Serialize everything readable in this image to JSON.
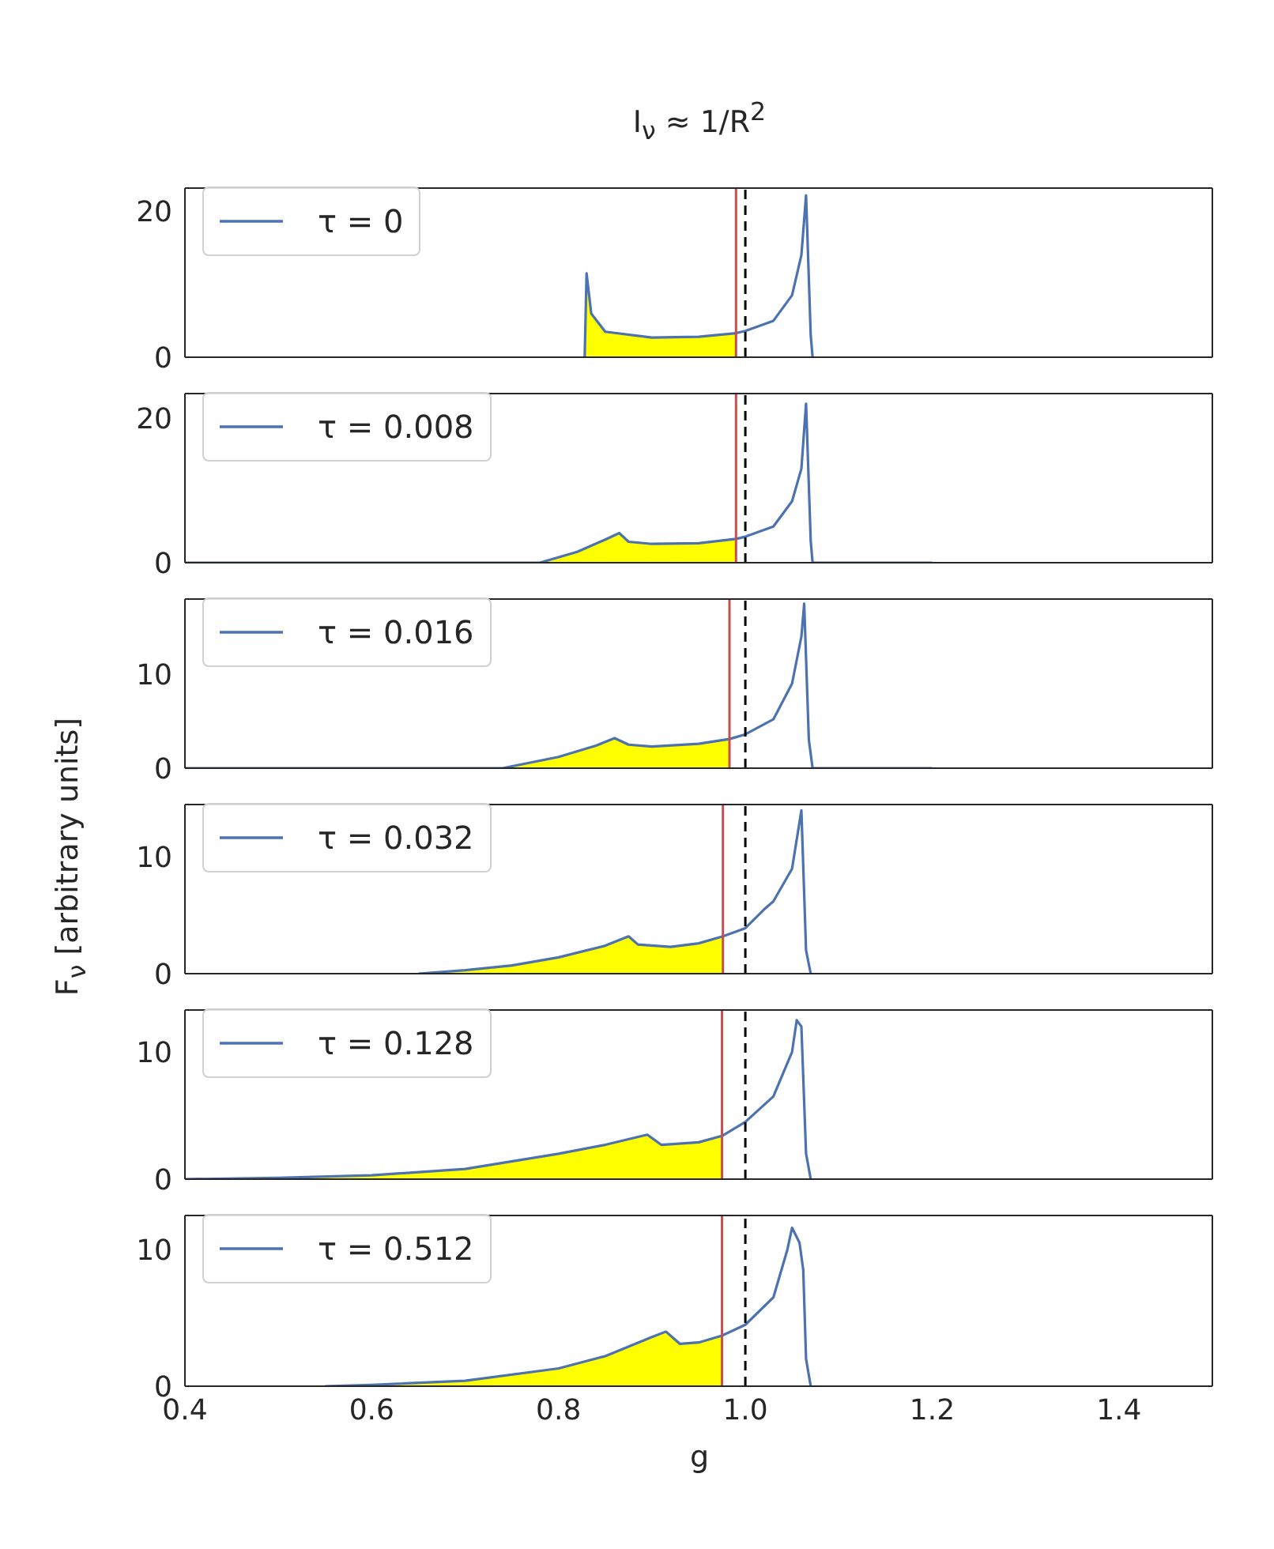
{
  "chart_data": [
    {
      "type": "line",
      "title": "I$_{ν}$ ≈ 1/R$^{2}$",
      "xlim": [
        0.4,
        1.5
      ],
      "xticks": [
        0.4,
        0.6,
        0.8,
        1.0,
        1.2,
        1.4
      ],
      "ylim": [
        0,
        23.2
      ],
      "yticks": [
        0,
        20
      ],
      "tick_labels": "y",
      "legend": "top left",
      "ref_lines": [
        {
          "axis": "x",
          "value": 0.99,
          "color": "#c44e52"
        },
        {
          "axis": "x",
          "value": 1.0,
          "color": "#000000",
          "line_style": "dashed"
        }
      ],
      "series": [
        {
          "type": "area",
          "color": "#ffff00",
          "x": [
            0.828,
            0.83,
            0.835,
            0.85,
            0.9,
            0.95,
            0.99
          ],
          "values": [
            0,
            11.5,
            6,
            3.5,
            2.7,
            2.8,
            3.3
          ]
        },
        {
          "type": "line",
          "name": "τ = 0",
          "color": "#4c72b0",
          "x": [
            0.828,
            0.83,
            0.835,
            0.85,
            0.9,
            0.95,
            0.99,
            1.0,
            1.03,
            1.05,
            1.06,
            1.065,
            1.07,
            1.072
          ],
          "values": [
            0,
            11.5,
            6,
            3.5,
            2.7,
            2.8,
            3.3,
            3.6,
            5,
            8.5,
            14,
            22.2,
            3,
            0
          ]
        }
      ]
    },
    {
      "type": "line",
      "xlim": [
        0.4,
        1.5
      ],
      "xticks": [
        0.4,
        0.6,
        0.8,
        1.0,
        1.2,
        1.4
      ],
      "ylim": [
        0,
        23.4
      ],
      "yticks": [
        0,
        20
      ],
      "tick_labels": "y",
      "legend": "top left",
      "ref_lines": [
        {
          "axis": "x",
          "value": 0.99,
          "color": "#c44e52"
        },
        {
          "axis": "x",
          "value": 1.0,
          "color": "#000000",
          "line_style": "dashed"
        }
      ],
      "series": [
        {
          "type": "area",
          "color": "#ffff00",
          "x": [
            0.4,
            0.78,
            0.82,
            0.85,
            0.865,
            0.875,
            0.9,
            0.95,
            0.99
          ],
          "values": [
            0,
            0,
            1.5,
            3.2,
            4.1,
            2.9,
            2.6,
            2.7,
            3.3
          ]
        },
        {
          "type": "line",
          "name": "τ = 0.008",
          "color": "#4c72b0",
          "x": [
            0.4,
            0.78,
            0.82,
            0.85,
            0.865,
            0.875,
            0.9,
            0.95,
            0.99,
            1.0,
            1.03,
            1.05,
            1.06,
            1.065,
            1.07,
            1.072,
            1.2
          ],
          "values": [
            0,
            0,
            1.5,
            3.2,
            4.1,
            2.9,
            2.6,
            2.7,
            3.3,
            3.6,
            5,
            8.5,
            13,
            22,
            3,
            0,
            0
          ]
        }
      ]
    },
    {
      "type": "line",
      "xlim": [
        0.4,
        1.5
      ],
      "xticks": [
        0.4,
        0.6,
        0.8,
        1.0,
        1.2,
        1.4
      ],
      "ylim": [
        0,
        18
      ],
      "yticks": [
        0,
        10
      ],
      "tick_labels": "y",
      "legend": "top left",
      "ref_lines": [
        {
          "axis": "x",
          "value": 0.983,
          "color": "#c44e52"
        },
        {
          "axis": "x",
          "value": 1.0,
          "color": "#000000",
          "line_style": "dashed"
        }
      ],
      "series": [
        {
          "type": "area",
          "color": "#ffff00",
          "x": [
            0.4,
            0.74,
            0.8,
            0.84,
            0.86,
            0.875,
            0.9,
            0.95,
            0.983
          ],
          "values": [
            0,
            0,
            1.2,
            2.4,
            3.2,
            2.5,
            2.3,
            2.6,
            3.1
          ]
        },
        {
          "type": "line",
          "name": "τ = 0.016",
          "color": "#4c72b0",
          "x": [
            0.4,
            0.74,
            0.8,
            0.84,
            0.86,
            0.875,
            0.9,
            0.95,
            0.983,
            1.0,
            1.03,
            1.05,
            1.06,
            1.063,
            1.068,
            1.072,
            1.2
          ],
          "values": [
            0,
            0,
            1.2,
            2.4,
            3.2,
            2.5,
            2.3,
            2.6,
            3.1,
            3.6,
            5.2,
            9,
            14,
            17.5,
            3,
            0,
            0
          ]
        }
      ]
    },
    {
      "type": "line",
      "ylabel": "F$_{ν}$ [arbitrary units]",
      "xlim": [
        0.4,
        1.5
      ],
      "xticks": [
        0.4,
        0.6,
        0.8,
        1.0,
        1.2,
        1.4
      ],
      "ylim": [
        0,
        14.5
      ],
      "yticks": [
        0,
        10
      ],
      "tick_labels": "y",
      "legend": "top left",
      "ref_lines": [
        {
          "axis": "x",
          "value": 0.976,
          "color": "#c44e52"
        },
        {
          "axis": "x",
          "value": 1.0,
          "color": "#000000",
          "line_style": "dashed"
        }
      ],
      "series": [
        {
          "type": "area",
          "color": "#ffff00",
          "x": [
            0.65,
            0.7,
            0.75,
            0.8,
            0.85,
            0.875,
            0.885,
            0.92,
            0.95,
            0.976
          ],
          "values": [
            0,
            0.3,
            0.7,
            1.4,
            2.4,
            3.2,
            2.5,
            2.3,
            2.6,
            3.2
          ]
        },
        {
          "type": "line",
          "name": "τ = 0.032",
          "color": "#4c72b0",
          "x": [
            0.65,
            0.7,
            0.75,
            0.8,
            0.85,
            0.875,
            0.885,
            0.92,
            0.95,
            0.976,
            1.0,
            1.02,
            1.03,
            1.05,
            1.06,
            1.065,
            1.07
          ],
          "values": [
            0,
            0.3,
            0.7,
            1.4,
            2.4,
            3.2,
            2.5,
            2.3,
            2.6,
            3.2,
            3.9,
            5.5,
            6.2,
            9,
            14,
            2,
            0
          ]
        }
      ]
    },
    {
      "type": "line",
      "xlim": [
        0.4,
        1.5
      ],
      "xticks": [
        0.4,
        0.6,
        0.8,
        1.0,
        1.2,
        1.4
      ],
      "ylim": [
        0,
        13.3
      ],
      "yticks": [
        0,
        10
      ],
      "tick_labels": "y",
      "legend": "top left",
      "ref_lines": [
        {
          "axis": "x",
          "value": 0.975,
          "color": "#c44e52"
        },
        {
          "axis": "x",
          "value": 1.0,
          "color": "#000000",
          "line_style": "dashed"
        }
      ],
      "series": [
        {
          "type": "area",
          "color": "#ffff00",
          "x": [
            0.4,
            0.5,
            0.6,
            0.7,
            0.8,
            0.85,
            0.895,
            0.91,
            0.95,
            0.975
          ],
          "values": [
            0,
            0.1,
            0.3,
            0.8,
            2,
            2.7,
            3.5,
            2.7,
            2.9,
            3.4
          ]
        },
        {
          "type": "line",
          "name": "τ = 0.128",
          "color": "#4c72b0",
          "x": [
            0.4,
            0.5,
            0.6,
            0.7,
            0.8,
            0.85,
            0.895,
            0.91,
            0.95,
            0.975,
            1.0,
            1.03,
            1.05,
            1.055,
            1.06,
            1.065,
            1.07
          ],
          "values": [
            0,
            0.1,
            0.3,
            0.8,
            2,
            2.7,
            3.5,
            2.7,
            2.9,
            3.4,
            4.5,
            6.5,
            10,
            12.5,
            12,
            2,
            0
          ]
        }
      ]
    },
    {
      "type": "line",
      "xlabel": "g",
      "xlim": [
        0.4,
        1.5
      ],
      "xticks": [
        0.4,
        0.6,
        0.8,
        {
          "value": 1.0,
          "label": "1.0"
        },
        1.2,
        1.4
      ],
      "ylim": [
        0,
        12.5
      ],
      "yticks": [
        0,
        10
      ],
      "legend": "top left",
      "ref_lines": [
        {
          "axis": "x",
          "value": 0.975,
          "color": "#c44e52"
        },
        {
          "axis": "x",
          "value": 1.0,
          "color": "#000000",
          "line_style": "dashed"
        }
      ],
      "series": [
        {
          "type": "area",
          "color": "#ffff00",
          "x": [
            0.55,
            0.6,
            0.7,
            0.8,
            0.85,
            0.9,
            0.915,
            0.93,
            0.95,
            0.975
          ],
          "values": [
            0,
            0.1,
            0.4,
            1.3,
            2.2,
            3.6,
            4,
            3.1,
            3.2,
            3.7
          ]
        },
        {
          "type": "line",
          "name": "τ = 0.512",
          "color": "#4c72b0",
          "x": [
            0.55,
            0.6,
            0.7,
            0.8,
            0.85,
            0.9,
            0.915,
            0.93,
            0.95,
            0.975,
            1.0,
            1.03,
            1.045,
            1.05,
            1.058,
            1.062,
            1.065,
            1.07
          ],
          "values": [
            0,
            0.1,
            0.4,
            1.3,
            2.2,
            3.6,
            4,
            3.1,
            3.2,
            3.7,
            4.5,
            6.5,
            10,
            11.6,
            10.5,
            8.5,
            2,
            0
          ]
        }
      ]
    }
  ]
}
